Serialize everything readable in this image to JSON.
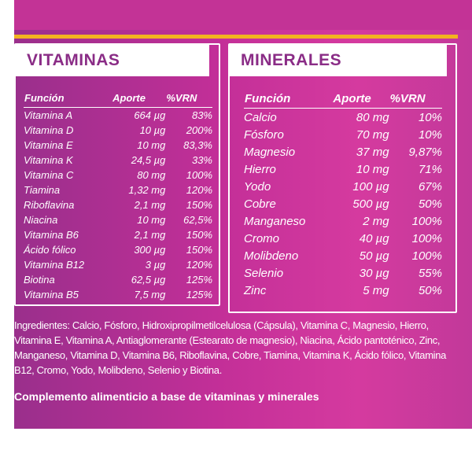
{
  "vitaminas": {
    "title": "VITAMINAS",
    "headers": [
      "Función",
      "Aporte",
      "%VRN"
    ],
    "rows": [
      [
        "Vitamina A",
        "664 µg",
        "83%"
      ],
      [
        "Vitamina D",
        "10 µg",
        "200%"
      ],
      [
        "Vitamina E",
        "10 mg",
        "83,3%"
      ],
      [
        "Vitamina K",
        "24,5 µg",
        "33%"
      ],
      [
        "Vitamina C",
        "80 mg",
        "100%"
      ],
      [
        "Tiamina",
        "1,32 mg",
        "120%"
      ],
      [
        "Riboflavina",
        "2,1 mg",
        "150%"
      ],
      [
        "Niacina",
        "10 mg",
        "62,5%"
      ],
      [
        "Vitamina B6",
        "2,1 mg",
        "150%"
      ],
      [
        "Ácido fólico",
        "300 µg",
        "150%"
      ],
      [
        "Vitamina B12",
        "3 µg",
        "120%"
      ],
      [
        "Biotina",
        "62,5 µg",
        "125%"
      ],
      [
        "Vitamina B5",
        "7,5 mg",
        "125%"
      ]
    ]
  },
  "minerales": {
    "title": "MINERALES",
    "headers": [
      "Función",
      "Aporte",
      "%VRN"
    ],
    "rows": [
      [
        "Calcio",
        "80 mg",
        "10%"
      ],
      [
        "Fósforo",
        "70 mg",
        "10%"
      ],
      [
        "Magnesio",
        "37 mg",
        "9,87%"
      ],
      [
        "Hierro",
        "10 mg",
        "71%"
      ],
      [
        "Yodo",
        "100 µg",
        "67%"
      ],
      [
        "Cobre",
        "500 µg",
        "50%"
      ],
      [
        "Manganeso",
        "2 mg",
        "100%"
      ],
      [
        "Cromo",
        "40 µg",
        "100%"
      ],
      [
        "Molibdeno",
        "50 µg",
        "100%"
      ],
      [
        "Selenio",
        "30 µg",
        "55%"
      ],
      [
        "Zinc",
        "5 mg",
        "50%"
      ]
    ]
  },
  "ingredients": "Ingredientes: Calcio, Fósforo, Hidroxipropilmetilcelulosa (Cápsula), Vitamina C, Magnesio, Hierro, Vitamina E, Vitamina A, Antiaglomerante (Estearato de magnesio), Niacina, Ácido pantoténico, Zinc, Manganeso, Vitamina D, Vitamina B6, Riboflavina, Cobre, Tiamina, Vitamina K, Ácido fólico, Vitamina B12, Cromo, Yodo, Molibdeno, Selenio y Biotina.",
  "footer": "Complemento alimenticio a base de vitaminas y minerales",
  "colors": {
    "panel": "#c32f98",
    "accent_bar": "#f2b320",
    "header_text": "#8a2c86"
  }
}
